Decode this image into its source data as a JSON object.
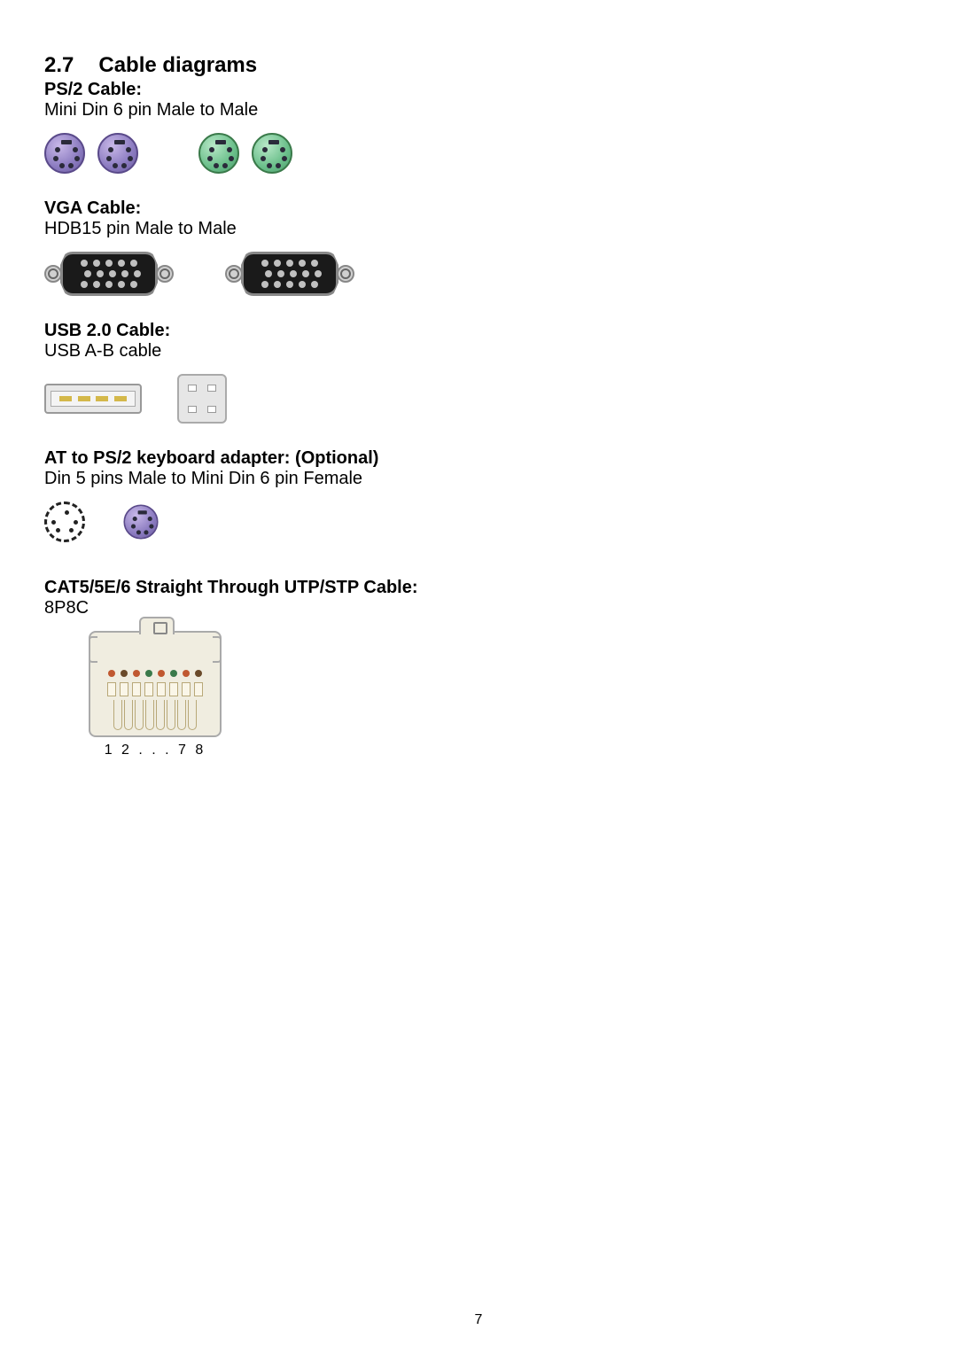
{
  "heading": {
    "number": "2.7",
    "title": "Cable diagrams"
  },
  "sections": {
    "ps2": {
      "title": "PS/2 Cable:",
      "desc": "Mini Din 6 pin Male to Male"
    },
    "vga": {
      "title": "VGA Cable:",
      "desc": "HDB15 pin Male to Male"
    },
    "usb": {
      "title": "USB 2.0 Cable:",
      "desc": "USB A-B cable"
    },
    "at": {
      "title": "AT to PS/2 keyboard adapter: (Optional)",
      "desc": "Din 5 pins Male to Mini Din 6 pin Female"
    },
    "cat5": {
      "title": "CAT5/5E/6 Straight Through UTP/STP Cable:",
      "desc": "8P8C"
    }
  },
  "rj45": {
    "wire_colors": [
      "#c05830",
      "#6a4a2a",
      "#c05830",
      "#3a7a4a",
      "#c05830",
      "#3a7a4a",
      "#c05830",
      "#6a4a2a"
    ],
    "pin_label": "1   2 . . . 7   8"
  },
  "colors": {
    "ps2_purple": "#8b7bc0",
    "ps2_green": "#6abf8a",
    "text": "#000000",
    "background": "#ffffff"
  },
  "page_number": "7"
}
